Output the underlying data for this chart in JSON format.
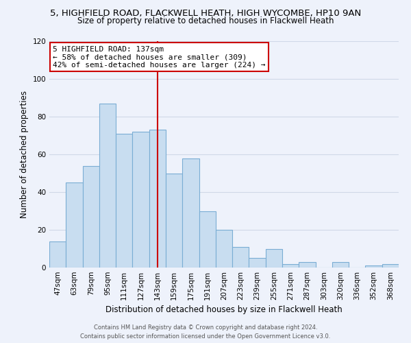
{
  "title": "5, HIGHFIELD ROAD, FLACKWELL HEATH, HIGH WYCOMBE, HP10 9AN",
  "subtitle": "Size of property relative to detached houses in Flackwell Heath",
  "xlabel": "Distribution of detached houses by size in Flackwell Heath",
  "ylabel": "Number of detached properties",
  "bin_labels": [
    "47sqm",
    "63sqm",
    "79sqm",
    "95sqm",
    "111sqm",
    "127sqm",
    "143sqm",
    "159sqm",
    "175sqm",
    "191sqm",
    "207sqm",
    "223sqm",
    "239sqm",
    "255sqm",
    "271sqm",
    "287sqm",
    "303sqm",
    "320sqm",
    "336sqm",
    "352sqm",
    "368sqm"
  ],
  "bar_heights": [
    14,
    45,
    54,
    87,
    71,
    72,
    73,
    50,
    58,
    30,
    20,
    11,
    5,
    10,
    2,
    3,
    0,
    3,
    0,
    1,
    2
  ],
  "bar_color": "#c8ddf0",
  "bar_edge_color": "#7aadd4",
  "vline_x": 6.0,
  "vline_color": "#cc0000",
  "annotation_title": "5 HIGHFIELD ROAD: 137sqm",
  "annotation_line1": "← 58% of detached houses are smaller (309)",
  "annotation_line2": "42% of semi-detached houses are larger (224) →",
  "annotation_box_color": "#ffffff",
  "annotation_box_edge": "#cc0000",
  "ylim": [
    0,
    120
  ],
  "yticks": [
    0,
    20,
    40,
    60,
    80,
    100,
    120
  ],
  "footer1": "Contains HM Land Registry data © Crown copyright and database right 2024.",
  "footer2": "Contains public sector information licensed under the Open Government Licence v3.0.",
  "bg_color": "#eef2fb",
  "grid_color": "#d0d8e8",
  "title_fontsize": 9.5,
  "subtitle_fontsize": 8.5,
  "ylabel_fontsize": 8.5,
  "xlabel_fontsize": 8.5,
  "tick_fontsize": 7.5,
  "annotation_fontsize": 8.0,
  "footer_fontsize": 6.0
}
